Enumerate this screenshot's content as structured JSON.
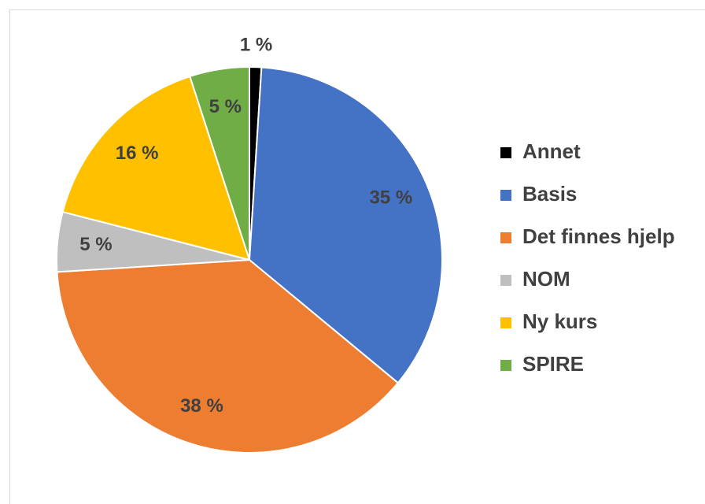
{
  "chart_data": {
    "type": "pie",
    "categories": [
      "Annet",
      "Basis",
      "Det finnes hjelp",
      "NOM",
      "Ny kurs",
      "SPIRE"
    ],
    "values": [
      1,
      35,
      38,
      5,
      16,
      5
    ],
    "value_labels": [
      "1 %",
      "35 %",
      "38 %",
      "5 %",
      "16 %",
      "5 %"
    ],
    "colors": [
      "#000000",
      "#4472c4",
      "#ed7d31",
      "#bfbfbf",
      "#ffc000",
      "#70ad47"
    ],
    "legend": "right"
  }
}
